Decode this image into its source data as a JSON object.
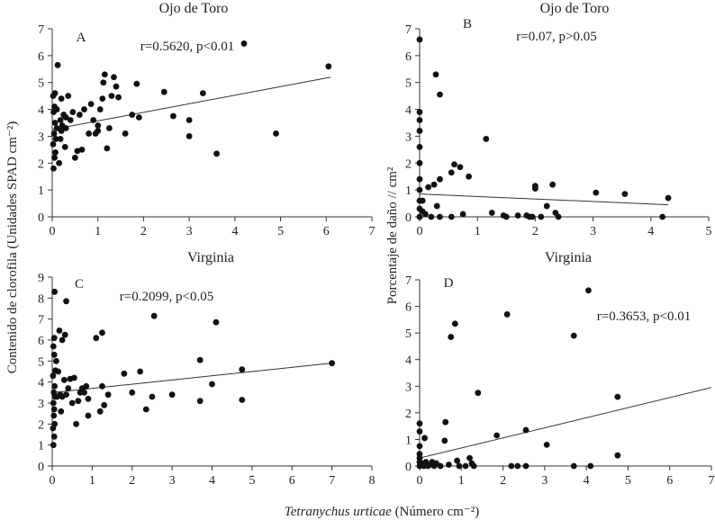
{
  "figure": {
    "shared_ylabel_left": "Contenido de clorofila (Unidades SPAD cm⁻²)",
    "shared_ylabel_right": "Porcentaje de daño // cm²",
    "shared_xlabel_italic": "Tetranychus urticae",
    "shared_xlabel_rest": " (Número cm⁻²)"
  },
  "chart_data": [
    {
      "id": "A",
      "type": "scatter",
      "title": "Ojo de Toro",
      "panel_label": "A",
      "annotation": "r=0.5620, p<0.01",
      "xlim": [
        0,
        7
      ],
      "ylim": [
        0,
        7
      ],
      "xticks": [
        "0",
        "1",
        "2",
        "3",
        "4",
        "5",
        "6",
        "7"
      ],
      "yticks": [
        "0",
        "1",
        "2",
        "3",
        "4",
        "5",
        "6",
        "7"
      ],
      "trend": {
        "x": [
          0,
          6.1
        ],
        "y": [
          3.25,
          5.2
        ]
      },
      "points": [
        [
          0.03,
          1.8
        ],
        [
          0.05,
          2.2
        ],
        [
          0.07,
          2.4
        ],
        [
          0.02,
          2.7
        ],
        [
          0.08,
          2.9
        ],
        [
          0.04,
          3.1
        ],
        [
          0.1,
          3.3
        ],
        [
          0.06,
          3.5
        ],
        [
          0.03,
          3.9
        ],
        [
          0.05,
          4.1
        ],
        [
          0.02,
          4.5
        ],
        [
          0.06,
          4.6
        ],
        [
          0.12,
          5.65
        ],
        [
          0.15,
          2.0
        ],
        [
          0.18,
          2.9
        ],
        [
          0.2,
          3.2
        ],
        [
          0.22,
          3.4
        ],
        [
          0.18,
          3.6
        ],
        [
          0.25,
          3.8
        ],
        [
          0.1,
          4.0
        ],
        [
          0.2,
          4.4
        ],
        [
          0.28,
          2.6
        ],
        [
          0.3,
          3.3
        ],
        [
          0.3,
          3.7
        ],
        [
          0.35,
          4.5
        ],
        [
          0.4,
          3.6
        ],
        [
          0.45,
          3.9
        ],
        [
          0.5,
          2.2
        ],
        [
          0.55,
          2.45
        ],
        [
          0.6,
          3.8
        ],
        [
          0.65,
          2.5
        ],
        [
          0.7,
          4.0
        ],
        [
          0.8,
          3.1
        ],
        [
          0.85,
          4.2
        ],
        [
          0.9,
          3.6
        ],
        [
          0.95,
          3.1
        ],
        [
          1.0,
          3.2
        ],
        [
          1.0,
          3.4
        ],
        [
          1.05,
          4.0
        ],
        [
          1.1,
          4.4
        ],
        [
          1.12,
          5.0
        ],
        [
          1.15,
          5.3
        ],
        [
          1.2,
          2.55
        ],
        [
          1.25,
          3.3
        ],
        [
          1.3,
          4.5
        ],
        [
          1.35,
          5.2
        ],
        [
          1.4,
          4.85
        ],
        [
          1.45,
          4.45
        ],
        [
          1.6,
          3.1
        ],
        [
          1.75,
          3.8
        ],
        [
          1.85,
          4.95
        ],
        [
          1.9,
          3.7
        ],
        [
          2.45,
          4.65
        ],
        [
          2.65,
          3.75
        ],
        [
          3.0,
          3.0
        ],
        [
          3.0,
          3.6
        ],
        [
          3.3,
          4.6
        ],
        [
          3.6,
          2.35
        ],
        [
          4.2,
          6.45
        ],
        [
          4.9,
          3.1
        ],
        [
          6.05,
          5.6
        ]
      ]
    },
    {
      "id": "B",
      "type": "scatter",
      "title": "Ojo de Toro",
      "panel_label": "B",
      "annotation": "r=0.07, p>0.05",
      "xlim": [
        0,
        5
      ],
      "ylim": [
        0,
        7
      ],
      "xticks": [
        "0",
        "1",
        "2",
        "3",
        "4",
        "5"
      ],
      "yticks": [
        "0",
        "1",
        "2",
        "3",
        "4",
        "5",
        "6",
        "7"
      ],
      "trend": {
        "x": [
          0,
          4.3
        ],
        "y": [
          0.85,
          0.45
        ]
      },
      "points": [
        [
          0.0,
          6.6
        ],
        [
          0.0,
          3.9
        ],
        [
          0.0,
          3.6
        ],
        [
          0.0,
          3.2
        ],
        [
          0.0,
          2.6
        ],
        [
          0.0,
          2.0
        ],
        [
          0.0,
          1.4
        ],
        [
          0.0,
          1.0
        ],
        [
          0.0,
          0.6
        ],
        [
          0.0,
          0.3
        ],
        [
          0.0,
          0.0
        ],
        [
          0.05,
          0.6
        ],
        [
          0.05,
          0.2
        ],
        [
          0.1,
          0.1
        ],
        [
          0.15,
          1.1
        ],
        [
          0.2,
          0.0
        ],
        [
          0.25,
          1.2
        ],
        [
          0.28,
          5.3
        ],
        [
          0.3,
          0.4
        ],
        [
          0.35,
          4.55
        ],
        [
          0.35,
          1.4
        ],
        [
          0.35,
          0.0
        ],
        [
          0.55,
          0.0
        ],
        [
          0.55,
          1.65
        ],
        [
          0.6,
          1.95
        ],
        [
          0.7,
          1.85
        ],
        [
          0.75,
          0.1
        ],
        [
          0.85,
          1.5
        ],
        [
          1.15,
          2.9
        ],
        [
          1.25,
          0.15
        ],
        [
          1.45,
          0.05
        ],
        [
          1.5,
          0.0
        ],
        [
          1.7,
          0.05
        ],
        [
          1.85,
          0.05
        ],
        [
          1.9,
          0.0
        ],
        [
          1.95,
          0.0
        ],
        [
          2.0,
          1.05
        ],
        [
          2.0,
          1.15
        ],
        [
          2.1,
          0.0
        ],
        [
          2.2,
          0.4
        ],
        [
          2.3,
          1.2
        ],
        [
          2.35,
          0.15
        ],
        [
          2.4,
          0.0
        ],
        [
          3.05,
          0.9
        ],
        [
          3.55,
          0.85
        ],
        [
          4.2,
          0.0
        ],
        [
          4.3,
          0.7
        ]
      ]
    },
    {
      "id": "C",
      "type": "scatter",
      "title": "Virginia",
      "panel_label": "C",
      "annotation": "r=0.2099, p<0.05",
      "xlim": [
        0,
        8
      ],
      "ylim": [
        0,
        9
      ],
      "xticks": [
        "0",
        "1",
        "2",
        "3",
        "4",
        "5",
        "6",
        "7",
        "8"
      ],
      "yticks": [
        "0",
        "1",
        "2",
        "3",
        "4",
        "5",
        "6",
        "7",
        "8",
        "9"
      ],
      "trend": {
        "x": [
          0,
          7.0
        ],
        "y": [
          3.5,
          4.9
        ]
      },
      "points": [
        [
          0.03,
          1.0
        ],
        [
          0.05,
          1.4
        ],
        [
          0.02,
          1.8
        ],
        [
          0.06,
          2.0
        ],
        [
          0.04,
          2.4
        ],
        [
          0.05,
          2.7
        ],
        [
          0.03,
          3.0
        ],
        [
          0.07,
          3.3
        ],
        [
          0.04,
          3.5
        ],
        [
          0.06,
          3.8
        ],
        [
          0.02,
          4.3
        ],
        [
          0.08,
          4.55
        ],
        [
          0.1,
          5.0
        ],
        [
          0.05,
          5.3
        ],
        [
          0.03,
          5.7
        ],
        [
          0.05,
          6.1
        ],
        [
          0.06,
          8.3
        ],
        [
          0.12,
          3.3
        ],
        [
          0.15,
          4.5
        ],
        [
          0.18,
          6.45
        ],
        [
          0.2,
          3.4
        ],
        [
          0.22,
          2.6
        ],
        [
          0.25,
          3.3
        ],
        [
          0.25,
          6.0
        ],
        [
          0.3,
          4.1
        ],
        [
          0.32,
          6.25
        ],
        [
          0.35,
          3.4
        ],
        [
          0.35,
          7.85
        ],
        [
          0.4,
          3.7
        ],
        [
          0.45,
          4.15
        ],
        [
          0.5,
          3.0
        ],
        [
          0.55,
          4.2
        ],
        [
          0.6,
          2.0
        ],
        [
          0.65,
          3.1
        ],
        [
          0.7,
          3.5
        ],
        [
          0.75,
          3.7
        ],
        [
          0.8,
          3.5
        ],
        [
          0.85,
          3.8
        ],
        [
          0.9,
          2.4
        ],
        [
          0.9,
          3.2
        ],
        [
          1.1,
          6.1
        ],
        [
          1.2,
          2.6
        ],
        [
          1.25,
          3.8
        ],
        [
          1.25,
          6.35
        ],
        [
          1.3,
          2.9
        ],
        [
          1.4,
          3.4
        ],
        [
          1.8,
          4.4
        ],
        [
          2.0,
          3.5
        ],
        [
          2.2,
          4.5
        ],
        [
          2.35,
          2.7
        ],
        [
          2.5,
          3.3
        ],
        [
          2.55,
          7.15
        ],
        [
          3.0,
          3.4
        ],
        [
          3.7,
          3.1
        ],
        [
          3.7,
          5.05
        ],
        [
          4.0,
          3.9
        ],
        [
          4.1,
          6.85
        ],
        [
          4.75,
          4.6
        ],
        [
          4.75,
          3.15
        ],
        [
          7.0,
          4.9
        ]
      ]
    },
    {
      "id": "D",
      "type": "scatter",
      "title": "Virginia",
      "panel_label": "D",
      "annotation": "r=0.3653, p<0.01",
      "xlim": [
        0,
        7
      ],
      "ylim": [
        0,
        7
      ],
      "xticks": [
        "0",
        "1",
        "2",
        "3",
        "4",
        "5",
        "6",
        "7"
      ],
      "yticks": [
        "0",
        "1",
        "2",
        "3",
        "4",
        "5",
        "6",
        "7"
      ],
      "trend": {
        "x": [
          0,
          7.0
        ],
        "y": [
          0.3,
          2.95
        ]
      },
      "points": [
        [
          0.0,
          1.6
        ],
        [
          0.0,
          1.3
        ],
        [
          0.0,
          0.75
        ],
        [
          0.0,
          0.45
        ],
        [
          0.0,
          0.3
        ],
        [
          0.0,
          0.15
        ],
        [
          0.0,
          0.0
        ],
        [
          0.05,
          0.1
        ],
        [
          0.1,
          0.0
        ],
        [
          0.12,
          1.05
        ],
        [
          0.15,
          0.15
        ],
        [
          0.2,
          0.0
        ],
        [
          0.25,
          0.05
        ],
        [
          0.3,
          0.15
        ],
        [
          0.35,
          0.0
        ],
        [
          0.4,
          0.1
        ],
        [
          0.5,
          0.0
        ],
        [
          0.6,
          0.95
        ],
        [
          0.62,
          1.65
        ],
        [
          0.7,
          0.05
        ],
        [
          0.75,
          4.85
        ],
        [
          0.85,
          5.35
        ],
        [
          0.9,
          0.2
        ],
        [
          0.95,
          0.0
        ],
        [
          1.1,
          0.0
        ],
        [
          1.2,
          0.3
        ],
        [
          1.25,
          0.1
        ],
        [
          1.3,
          0.0
        ],
        [
          1.4,
          2.75
        ],
        [
          1.85,
          1.15
        ],
        [
          2.1,
          5.7
        ],
        [
          2.2,
          0.0
        ],
        [
          2.35,
          0.0
        ],
        [
          2.55,
          1.35
        ],
        [
          2.55,
          0.0
        ],
        [
          3.05,
          0.8
        ],
        [
          3.7,
          4.9
        ],
        [
          3.7,
          0.0
        ],
        [
          4.05,
          6.6
        ],
        [
          4.1,
          0.0
        ],
        [
          4.75,
          2.6
        ],
        [
          4.75,
          0.4
        ]
      ]
    }
  ]
}
